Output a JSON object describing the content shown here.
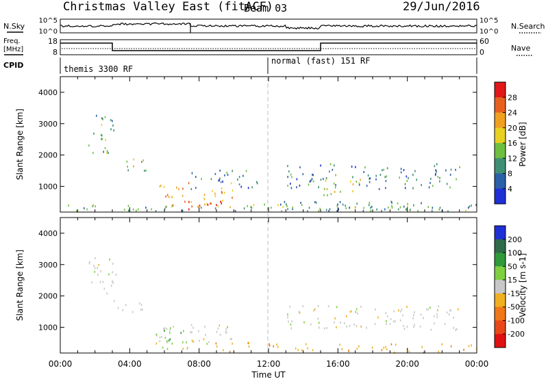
{
  "header": {
    "station": "Christmas Valley East (fitACF)",
    "beam": "Beam 03",
    "date": "29/Jun/2016"
  },
  "top_panels": {
    "nsky_label": "N.Sky",
    "nsky_ticks": [
      "10^5",
      "10^0"
    ],
    "nsearch_label": "N.Search",
    "nsearch_ticks": [
      "10^5",
      "10^0"
    ],
    "freq_label_1": "Freq.",
    "freq_label_2": "[MHz]",
    "freq_ticks": [
      "18",
      "8"
    ],
    "nave_label": "Nave",
    "nave_ticks": [
      "60",
      "0"
    ],
    "cpid_label": "CPID",
    "cpid_segments": [
      {
        "start_hour": 0,
        "label": "themis 3300 RF"
      },
      {
        "start_hour": 12,
        "label": "normal (fast) 151 RF"
      }
    ],
    "frequency_series": {
      "name": "Freq.",
      "breakpoints_hour": [
        0,
        3,
        15,
        24
      ],
      "level": [
        "high",
        "low",
        "high"
      ]
    }
  },
  "chart_data": [
    {
      "type": "heatmap",
      "title": "",
      "xlabel": "",
      "ylabel": "Slant Range [km]",
      "xlim": [
        0,
        24
      ],
      "ylim": [
        180,
        4500
      ],
      "x_tick_labels": [
        "00:00",
        "04:00",
        "08:00",
        "12:00",
        "16:00",
        "20:00",
        "00:00"
      ],
      "y_ticks": [
        1000,
        2000,
        3000,
        4000
      ],
      "colorbar": {
        "label": "Power [dB]",
        "ticks": [
          4,
          8,
          12,
          16,
          20,
          24,
          28
        ],
        "range": [
          0,
          30
        ],
        "colors": [
          "#1f2fd6",
          "#2b5fa8",
          "#3f8f73",
          "#6fbf3f",
          "#e8d020",
          "#f0a020",
          "#e86020",
          "#e01818"
        ]
      },
      "echo_regions": [
        {
          "hour_start": 0.3,
          "hour_end": 24,
          "range_start": 180,
          "range_end": 420,
          "level": 12
        },
        {
          "hour_start": 5.5,
          "hour_end": 10.0,
          "range_start": 300,
          "range_end": 1100,
          "level": 22
        },
        {
          "hour_start": 6.5,
          "hour_end": 9.5,
          "range_start": 250,
          "range_end": 500,
          "level": 28
        },
        {
          "hour_start": 1.6,
          "hour_end": 3.2,
          "range_start": 2000,
          "range_end": 3300,
          "level": 12
        },
        {
          "hour_start": 3.0,
          "hour_end": 5.0,
          "range_start": 1450,
          "range_end": 1850,
          "level": 16
        },
        {
          "hour_start": 7.5,
          "hour_end": 11.5,
          "range_start": 900,
          "range_end": 1500,
          "level": 8
        },
        {
          "hour_start": 15.0,
          "hour_end": 17.5,
          "range_start": 600,
          "range_end": 1200,
          "level": 18
        },
        {
          "hour_start": 13.0,
          "hour_end": 23.0,
          "range_start": 900,
          "range_end": 1700,
          "level": 8
        },
        {
          "hour_start": 12.0,
          "hour_end": 24.0,
          "range_start": 180,
          "range_end": 500,
          "level": 10
        }
      ]
    },
    {
      "type": "heatmap",
      "title": "",
      "xlabel": "Time UT",
      "ylabel": "Slant Range [km]",
      "xlim": [
        0,
        24
      ],
      "ylim": [
        180,
        4500
      ],
      "x_tick_labels": [
        "00:00",
        "04:00",
        "08:00",
        "12:00",
        "16:00",
        "20:00",
        "00:00"
      ],
      "y_ticks": [
        1000,
        2000,
        3000,
        4000
      ],
      "colorbar": {
        "label": "Velocity [m s-1]",
        "ticks": [
          200,
          100,
          50,
          15,
          -15,
          -50,
          -100,
          -200
        ],
        "colors": [
          "#1f2fd6",
          "#2f6a4a",
          "#2f9a3a",
          "#7fd040",
          "#c8c8c8",
          "#f0b020",
          "#f07818",
          "#e84818",
          "#e01010"
        ]
      },
      "echo_regions": [
        {
          "hour_start": 5.5,
          "hour_end": 10.0,
          "range_start": 300,
          "range_end": 1100,
          "velocity": 0
        },
        {
          "hour_start": 5.5,
          "hour_end": 7.5,
          "range_start": 300,
          "range_end": 900,
          "velocity": 40
        },
        {
          "hour_start": 8.5,
          "hour_end": 11.0,
          "range_start": 200,
          "range_end": 500,
          "velocity": -40
        },
        {
          "hour_start": 12.0,
          "hour_end": 24.0,
          "range_start": 180,
          "range_end": 450,
          "velocity": -40
        },
        {
          "hour_start": 1.6,
          "hour_end": 3.2,
          "range_start": 2000,
          "range_end": 3300,
          "velocity": 0
        },
        {
          "hour_start": 3.0,
          "hour_end": 5.0,
          "range_start": 1450,
          "range_end": 1850,
          "velocity": 0
        },
        {
          "hour_start": 13.0,
          "hour_end": 23.0,
          "range_start": 900,
          "range_end": 1700,
          "velocity": 0
        }
      ]
    }
  ]
}
